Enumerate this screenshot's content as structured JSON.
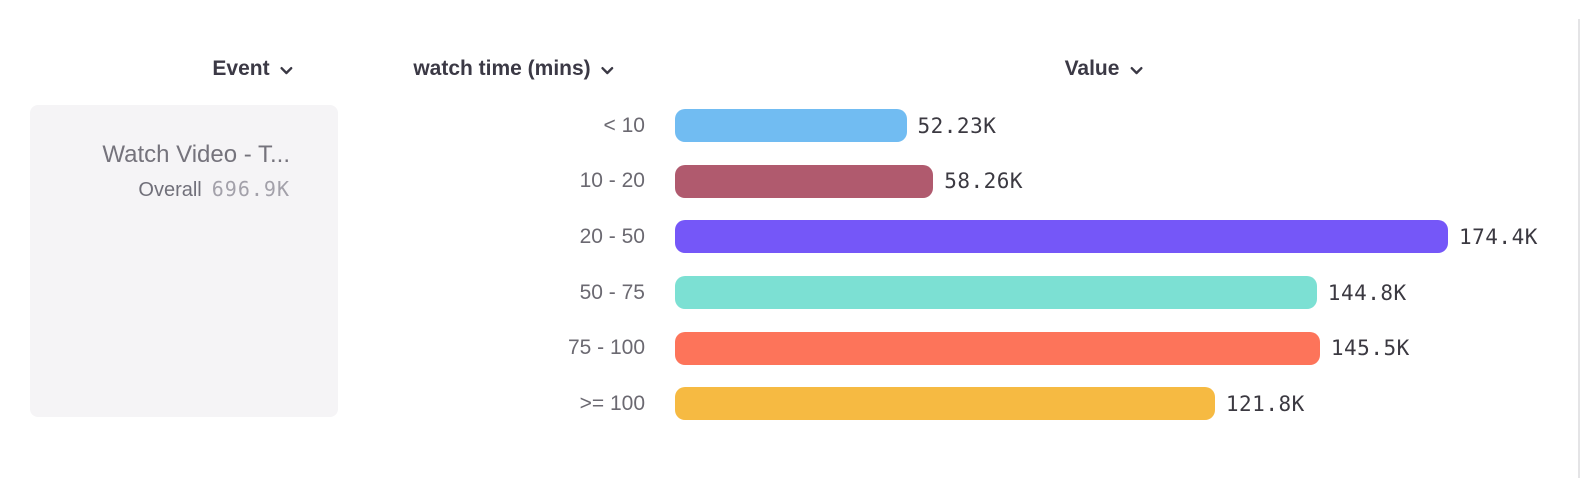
{
  "header": {
    "columns": [
      {
        "label": "Event"
      },
      {
        "label": "watch time (mins)"
      },
      {
        "label": "Value"
      }
    ]
  },
  "event_card": {
    "title": "Watch Video - T...",
    "overall_label": "Overall",
    "overall_value": "696.9K"
  },
  "chart_data": {
    "type": "bar",
    "orientation": "horizontal",
    "categories": [
      "< 10",
      "10 - 20",
      "20 - 50",
      "50 - 75",
      "75 - 100",
      ">= 100"
    ],
    "values": [
      52230,
      58260,
      174400,
      144800,
      145500,
      121800
    ],
    "value_labels": [
      "52.23K",
      "58.26K",
      "174.4K",
      "144.8K",
      "145.5K",
      "121.8K"
    ],
    "bar_colors": [
      "#71bcf2",
      "#b05a6e",
      "#7557f8",
      "#7ce0d3",
      "#fd745a",
      "#f6ba42"
    ],
    "xlabel": "Value",
    "ylabel": "watch time (mins)",
    "xlim": [
      0,
      174400
    ],
    "grid": false,
    "legend": false
  },
  "colors": {
    "header_text": "#3b3945",
    "category_text": "#6b6971",
    "value_text": "#3b3941",
    "card_bg": "#f5f4f6",
    "divider": "#e4e4e6"
  }
}
